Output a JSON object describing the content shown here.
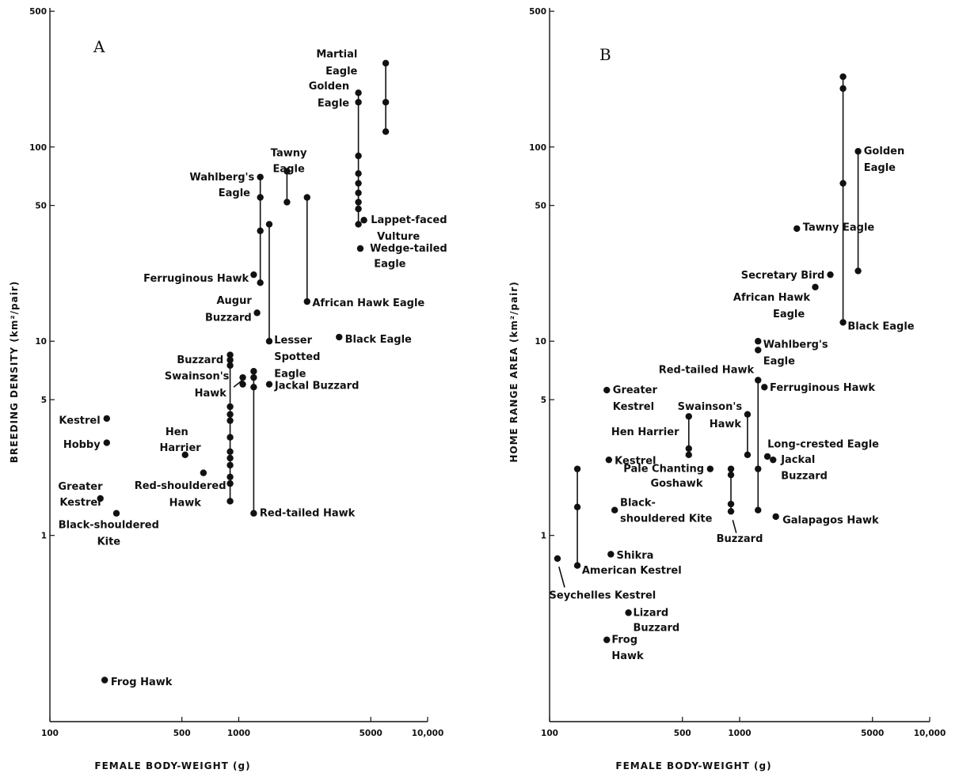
{
  "chart_data": [
    {
      "type": "scatter",
      "panel_label": "A",
      "xlabel": "FEMALE  BODY-WEIGHT (g)",
      "ylabel": "BREEDING  DENSITY (km²/pair)",
      "xscale": "log",
      "yscale": "log",
      "xlim": [
        100,
        10000
      ],
      "ylim": [
        0.11,
        520
      ],
      "xticks": [
        100,
        500,
        1000,
        5000,
        10000
      ],
      "xtick_labels": [
        "100",
        "500",
        "1000",
        "5000",
        "10,000"
      ],
      "yticks": [
        1,
        5,
        10,
        50,
        100,
        500
      ],
      "ytick_labels": [
        "1",
        "5",
        "10",
        "50",
        "100",
        "500"
      ],
      "points": [
        {
          "label": "Martial Eagle",
          "x": 6000,
          "y": 270,
          "lx": 6000,
          "ly": 270
        },
        {
          "x": 6000,
          "y": 170
        },
        {
          "x": 6000,
          "y": 120
        },
        {
          "label": "Golden Eagle",
          "x": 4300,
          "y": 190,
          "lx": 4300,
          "ly": 190
        },
        {
          "x": 4300,
          "y": 170
        },
        {
          "x": 4300,
          "y": 90
        },
        {
          "x": 4300,
          "y": 73
        },
        {
          "x": 4300,
          "y": 65
        },
        {
          "x": 4300,
          "y": 58
        },
        {
          "x": 4300,
          "y": 52
        },
        {
          "x": 4300,
          "y": 48
        },
        {
          "x": 4300,
          "y": 40
        },
        {
          "label": "Lappet-faced Vulture",
          "x": 4600,
          "y": 42
        },
        {
          "label": "Wedge-tailed Eagle",
          "x": 4400,
          "y": 30
        },
        {
          "label": "Tawny Eagle",
          "x": 1800,
          "y": 75
        },
        {
          "x": 1800,
          "y": 52
        },
        {
          "label": "Wahlberg's Eagle",
          "x": 1300,
          "y": 70
        },
        {
          "x": 1300,
          "y": 55
        },
        {
          "x": 1300,
          "y": 37
        },
        {
          "x": 1300,
          "y": 20
        },
        {
          "x": 1450,
          "y": 40
        },
        {
          "label": "Lesser Spotted Eagle",
          "x": 1450,
          "y": 10
        },
        {
          "x": 2300,
          "y": 55
        },
        {
          "label": "African Hawk Eagle",
          "x": 2300,
          "y": 16
        },
        {
          "label": "Ferruginous Hawk",
          "x": 1200,
          "y": 22
        },
        {
          "label": "Augur Buzzard",
          "x": 1250,
          "y": 14
        },
        {
          "label": "Black Eagle",
          "x": 3400,
          "y": 10.5
        },
        {
          "label": "Buzzard",
          "x": 900,
          "y": 8.5
        },
        {
          "x": 900,
          "y": 8
        },
        {
          "x": 900,
          "y": 7.5
        },
        {
          "x": 900,
          "y": 4.6
        },
        {
          "x": 900,
          "y": 4.2
        },
        {
          "x": 900,
          "y": 3.9
        },
        {
          "x": 900,
          "y": 3.2
        },
        {
          "x": 900,
          "y": 2.7
        },
        {
          "x": 900,
          "y": 2.5
        },
        {
          "x": 900,
          "y": 2.3
        },
        {
          "x": 900,
          "y": 2.0
        },
        {
          "x": 900,
          "y": 1.85
        },
        {
          "x": 900,
          "y": 1.5
        },
        {
          "label": "Swainson's Hawk",
          "x": 1050,
          "y": 6.5
        },
        {
          "x": 1050,
          "y": 6
        },
        {
          "x": 1200,
          "y": 7
        },
        {
          "x": 1200,
          "y": 6.5
        },
        {
          "x": 1200,
          "y": 5.8
        },
        {
          "label": "Red-tailed Hawk",
          "x": 1200,
          "y": 1.3
        },
        {
          "label": "Jackal Buzzard",
          "x": 1450,
          "y": 6
        },
        {
          "label": "Hen Harrier",
          "x": 520,
          "y": 2.6
        },
        {
          "label": "Red-shouldered Hawk",
          "x": 650,
          "y": 2.1
        },
        {
          "label": "Kestrel",
          "x": 200,
          "y": 4.0
        },
        {
          "label": "Hobby",
          "x": 200,
          "y": 3.0
        },
        {
          "label": "Greater Kestrel",
          "x": 185,
          "y": 1.55
        },
        {
          "label": "Black-shouldered Kite",
          "x": 225,
          "y": 1.3
        },
        {
          "label": "Frog Hawk",
          "x": 195,
          "y": 0.18
        }
      ],
      "segments": [
        [
          6000,
          270,
          6000,
          120
        ],
        [
          4300,
          190,
          4300,
          40
        ],
        [
          1800,
          75,
          1800,
          52
        ],
        [
          1300,
          70,
          1300,
          20
        ],
        [
          1450,
          40,
          1450,
          10
        ],
        [
          2300,
          55,
          2300,
          16
        ],
        [
          900,
          8.5,
          900,
          1.5
        ],
        [
          1050,
          6.5,
          1050,
          6
        ],
        [
          1200,
          7,
          1200,
          1.3
        ]
      ],
      "labels": [
        {
          "text": "Martial",
          "x": 4250,
          "y": 300,
          "anchor": "end"
        },
        {
          "text": "Eagle",
          "x": 4250,
          "y": 245,
          "anchor": "end"
        },
        {
          "text": "Golden",
          "x": 3850,
          "y": 205,
          "anchor": "end"
        },
        {
          "text": "Eagle",
          "x": 3850,
          "y": 168,
          "anchor": "end"
        },
        {
          "text": "Lappet-faced",
          "x": 5000,
          "y": 42,
          "anchor": "start"
        },
        {
          "text": "Vulture",
          "x": 5400,
          "y": 34.5,
          "anchor": "start"
        },
        {
          "text": "Wedge-tailed",
          "x": 4950,
          "y": 30,
          "anchor": "start"
        },
        {
          "text": "Eagle",
          "x": 5200,
          "y": 25,
          "anchor": "start"
        },
        {
          "text": "Tawny",
          "x": 1840,
          "y": 93,
          "anchor": "middle"
        },
        {
          "text": "Eagle",
          "x": 1840,
          "y": 77,
          "anchor": "middle"
        },
        {
          "text": "Wahlberg's",
          "x": 1210,
          "y": 70,
          "anchor": "end"
        },
        {
          "text": "Eagle",
          "x": 1150,
          "y": 58,
          "anchor": "end"
        },
        {
          "text": "Ferruginous Hawk",
          "x": 1130,
          "y": 21,
          "anchor": "end"
        },
        {
          "text": "Augur",
          "x": 1170,
          "y": 16.2,
          "anchor": "end"
        },
        {
          "text": "Buzzard",
          "x": 1170,
          "y": 13.2,
          "anchor": "end"
        },
        {
          "text": "African Hawk Eagle",
          "x": 2450,
          "y": 15.7,
          "anchor": "start"
        },
        {
          "text": "Lesser",
          "x": 1540,
          "y": 10.1,
          "anchor": "start"
        },
        {
          "text": "Spotted",
          "x": 1540,
          "y": 8.3,
          "anchor": "start"
        },
        {
          "text": "Eagle",
          "x": 1540,
          "y": 6.8,
          "anchor": "start"
        },
        {
          "text": "Black Eagle",
          "x": 3650,
          "y": 10.2,
          "anchor": "start"
        },
        {
          "text": "Buzzard",
          "x": 830,
          "y": 8.0,
          "anchor": "end"
        },
        {
          "text": "Swainson's",
          "x": 890,
          "y": 6.6,
          "anchor": "end"
        },
        {
          "text": "Hawk",
          "x": 860,
          "y": 5.4,
          "anchor": "end"
        },
        {
          "text": "Jackal Buzzard",
          "x": 1550,
          "y": 5.9,
          "anchor": "start"
        },
        {
          "text": "Hen",
          "x": 470,
          "y": 3.4,
          "anchor": "middle"
        },
        {
          "text": "Harrier",
          "x": 490,
          "y": 2.82,
          "anchor": "middle"
        },
        {
          "text": "Red-shouldered",
          "x": 490,
          "y": 1.8,
          "anchor": "middle"
        },
        {
          "text": "Hawk",
          "x": 520,
          "y": 1.47,
          "anchor": "middle"
        },
        {
          "text": "Red-tailed Hawk",
          "x": 1290,
          "y": 1.3,
          "anchor": "start"
        },
        {
          "text": "Kestrel",
          "x": 185,
          "y": 3.9,
          "anchor": "end"
        },
        {
          "text": "Hobby",
          "x": 185,
          "y": 2.93,
          "anchor": "end"
        },
        {
          "text": "Greater",
          "x": 145,
          "y": 1.78,
          "anchor": "middle"
        },
        {
          "text": "Kestrel",
          "x": 145,
          "y": 1.48,
          "anchor": "middle"
        },
        {
          "text": "Black-shouldered",
          "x": 205,
          "y": 1.13,
          "anchor": "middle"
        },
        {
          "text": "Kite",
          "x": 205,
          "y": 0.93,
          "anchor": "middle"
        },
        {
          "text": "Frog Hawk",
          "x": 210,
          "y": 0.176,
          "anchor": "start"
        }
      ],
      "pointers": [
        {
          "x1": 940,
          "y1": 5.8,
          "x2": 1045,
          "y2": 6.3
        }
      ]
    },
    {
      "type": "scatter",
      "panel_label": "B",
      "xlabel": "FEMALE  BODY-WEIGHT (g)",
      "ylabel": "HOME  RANGE  AREA (km²/pair)",
      "xscale": "log",
      "yscale": "log",
      "xlim": [
        100,
        10000
      ],
      "ylim": [
        0.11,
        520
      ],
      "xticks": [
        100,
        500,
        1000,
        5000,
        10000
      ],
      "xtick_labels": [
        "100",
        "500",
        "1000",
        "5000",
        "10,000"
      ],
      "yticks": [
        1,
        5,
        10,
        50,
        100,
        500
      ],
      "ytick_labels": [
        "1",
        "5",
        "10",
        "50",
        "100",
        "500"
      ],
      "points": [
        {
          "x": 3500,
          "y": 230
        },
        {
          "x": 3500,
          "y": 200
        },
        {
          "x": 3500,
          "y": 65
        },
        {
          "x": 3500,
          "y": 12.5
        },
        {
          "x": 4200,
          "y": 95
        },
        {
          "x": 4200,
          "y": 23
        },
        {
          "x": 2000,
          "y": 38
        },
        {
          "x": 3000,
          "y": 22
        },
        {
          "x": 2500,
          "y": 19
        },
        {
          "x": 1250,
          "y": 10
        },
        {
          "x": 1250,
          "y": 9
        },
        {
          "x": 1250,
          "y": 6.3
        },
        {
          "x": 1250,
          "y": 2.2
        },
        {
          "x": 1250,
          "y": 1.35
        },
        {
          "x": 1350,
          "y": 5.8
        },
        {
          "x": 1100,
          "y": 4.2
        },
        {
          "x": 1100,
          "y": 2.6
        },
        {
          "x": 540,
          "y": 4.1
        },
        {
          "x": 540,
          "y": 2.8
        },
        {
          "x": 540,
          "y": 2.6
        },
        {
          "x": 900,
          "y": 2.2
        },
        {
          "x": 900,
          "y": 2.05
        },
        {
          "x": 900,
          "y": 1.45
        },
        {
          "x": 900,
          "y": 1.33
        },
        {
          "x": 1400,
          "y": 2.55
        },
        {
          "x": 1500,
          "y": 2.45
        },
        {
          "x": 700,
          "y": 2.2
        },
        {
          "x": 1550,
          "y": 1.25
        },
        {
          "x": 200,
          "y": 5.6
        },
        {
          "x": 205,
          "y": 2.45
        },
        {
          "x": 220,
          "y": 1.35
        },
        {
          "x": 210,
          "y": 0.8
        },
        {
          "x": 140,
          "y": 2.2
        },
        {
          "x": 140,
          "y": 1.4
        },
        {
          "x": 140,
          "y": 0.7
        },
        {
          "x": 110,
          "y": 0.76
        },
        {
          "x": 260,
          "y": 0.4
        },
        {
          "x": 200,
          "y": 0.29
        }
      ],
      "segments": [
        [
          3500,
          230,
          3500,
          12.5
        ],
        [
          4200,
          95,
          4200,
          23
        ],
        [
          1250,
          6.3,
          1250,
          1.35
        ],
        [
          1100,
          4.2,
          1100,
          2.6
        ],
        [
          540,
          4.1,
          540,
          2.6
        ],
        [
          900,
          2.2,
          900,
          1.33
        ],
        [
          140,
          2.2,
          140,
          0.7
        ]
      ],
      "labels": [
        {
          "text": "Golden",
          "x": 4500,
          "y": 95,
          "anchor": "start"
        },
        {
          "text": "Eagle",
          "x": 4500,
          "y": 78,
          "anchor": "start"
        },
        {
          "text": "Tawny Eagle",
          "x": 2150,
          "y": 38.5,
          "anchor": "start"
        },
        {
          "text": "Secretary Bird",
          "x": 2800,
          "y": 21.8,
          "anchor": "end"
        },
        {
          "text": "African Hawk",
          "x": 2350,
          "y": 16.8,
          "anchor": "end"
        },
        {
          "text": "Eagle",
          "x": 2200,
          "y": 13.8,
          "anchor": "end"
        },
        {
          "text": "Black Eagle",
          "x": 3700,
          "y": 11.9,
          "anchor": "start"
        },
        {
          "text": "Wahlberg's",
          "x": 1330,
          "y": 9.6,
          "anchor": "start"
        },
        {
          "text": "Eagle",
          "x": 1330,
          "y": 7.9,
          "anchor": "start"
        },
        {
          "text": "Red-tailed Hawk",
          "x": 1190,
          "y": 7.1,
          "anchor": "end"
        },
        {
          "text": "Ferruginous Hawk",
          "x": 1440,
          "y": 5.75,
          "anchor": "start"
        },
        {
          "text": "Greater",
          "x": 215,
          "y": 5.6,
          "anchor": "start"
        },
        {
          "text": "Kestrel",
          "x": 215,
          "y": 4.6,
          "anchor": "start"
        },
        {
          "text": "Swainson's",
          "x": 1030,
          "y": 4.6,
          "anchor": "end"
        },
        {
          "text": "Hawk",
          "x": 1020,
          "y": 3.75,
          "anchor": "end"
        },
        {
          "text": "Hen Harrier",
          "x": 480,
          "y": 3.4,
          "anchor": "end"
        },
        {
          "text": "Long-crested Eagle",
          "x": 1400,
          "y": 2.95,
          "anchor": "start"
        },
        {
          "text": "Jackal",
          "x": 1650,
          "y": 2.45,
          "anchor": "start"
        },
        {
          "text": "Buzzard",
          "x": 1650,
          "y": 2.02,
          "anchor": "start"
        },
        {
          "text": "Kestrel",
          "x": 220,
          "y": 2.42,
          "anchor": "start"
        },
        {
          "text": "Pale Chanting",
          "x": 650,
          "y": 2.2,
          "anchor": "end"
        },
        {
          "text": "Goshawk",
          "x": 640,
          "y": 1.85,
          "anchor": "end"
        },
        {
          "text": "Black-",
          "x": 235,
          "y": 1.47,
          "anchor": "start"
        },
        {
          "text": "shouldered Kite",
          "x": 235,
          "y": 1.22,
          "anchor": "start"
        },
        {
          "text": "Galapagos Hawk",
          "x": 1680,
          "y": 1.2,
          "anchor": "start"
        },
        {
          "text": "Buzzard",
          "x": 1000,
          "y": 0.96,
          "anchor": "middle"
        },
        {
          "text": "Shikra",
          "x": 225,
          "y": 0.79,
          "anchor": "start"
        },
        {
          "text": "American Kestrel",
          "x": 148,
          "y": 0.66,
          "anchor": "start"
        },
        {
          "text": "Seychelles Kestrel",
          "x": 190,
          "y": 0.49,
          "anchor": "middle"
        },
        {
          "text": "Lizard",
          "x": 275,
          "y": 0.4,
          "anchor": "start"
        },
        {
          "text": "Buzzard",
          "x": 275,
          "y": 0.335,
          "anchor": "start"
        },
        {
          "text": "Frog",
          "x": 212,
          "y": 0.29,
          "anchor": "start"
        },
        {
          "text": "Hawk",
          "x": 212,
          "y": 0.24,
          "anchor": "start"
        }
      ],
      "pointers": [
        {
          "x1": 120,
          "y1": 0.54,
          "x2": 112,
          "y2": 0.69
        },
        {
          "x1": 960,
          "y1": 1.03,
          "x2": 920,
          "y2": 1.2
        }
      ]
    }
  ]
}
